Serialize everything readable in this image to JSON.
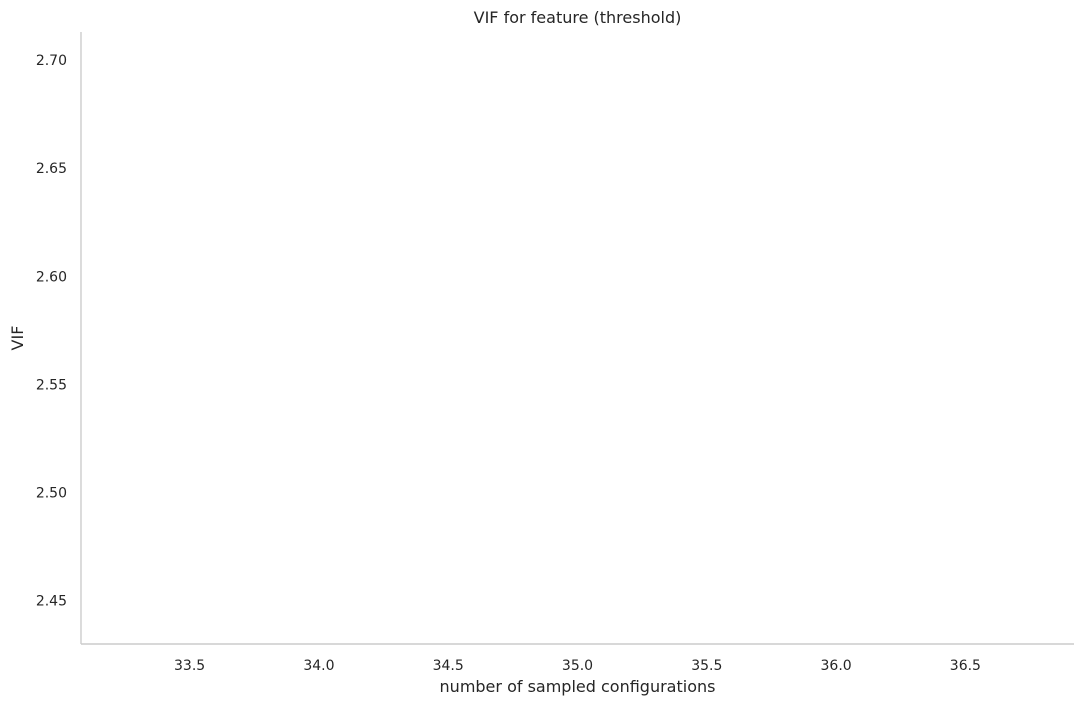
{
  "chart_data": {
    "type": "line",
    "title": "VIF for feature (threshold)",
    "xlabel": "number of sampled configurations",
    "ylabel": "VIF",
    "xlim": [
      33.08,
      36.92
    ],
    "ylim": [
      2.43,
      2.713
    ],
    "x_ticks": [
      33.5,
      34.0,
      34.5,
      35.0,
      35.5,
      36.0,
      36.5
    ],
    "x_tick_labels": [
      "33.5",
      "34.0",
      "34.5",
      "35.0",
      "35.5",
      "36.0",
      "36.5"
    ],
    "y_ticks": [
      2.45,
      2.5,
      2.55,
      2.6,
      2.65,
      2.7
    ],
    "y_tick_labels": [
      "2.45",
      "2.50",
      "2.55",
      "2.60",
      "2.65",
      "2.70"
    ],
    "grid": false,
    "series": [
      {
        "x": [],
        "values": [],
        "color": "#1f77b4"
      }
    ],
    "axis_color": "#cccccc",
    "text_color": "#262626"
  }
}
